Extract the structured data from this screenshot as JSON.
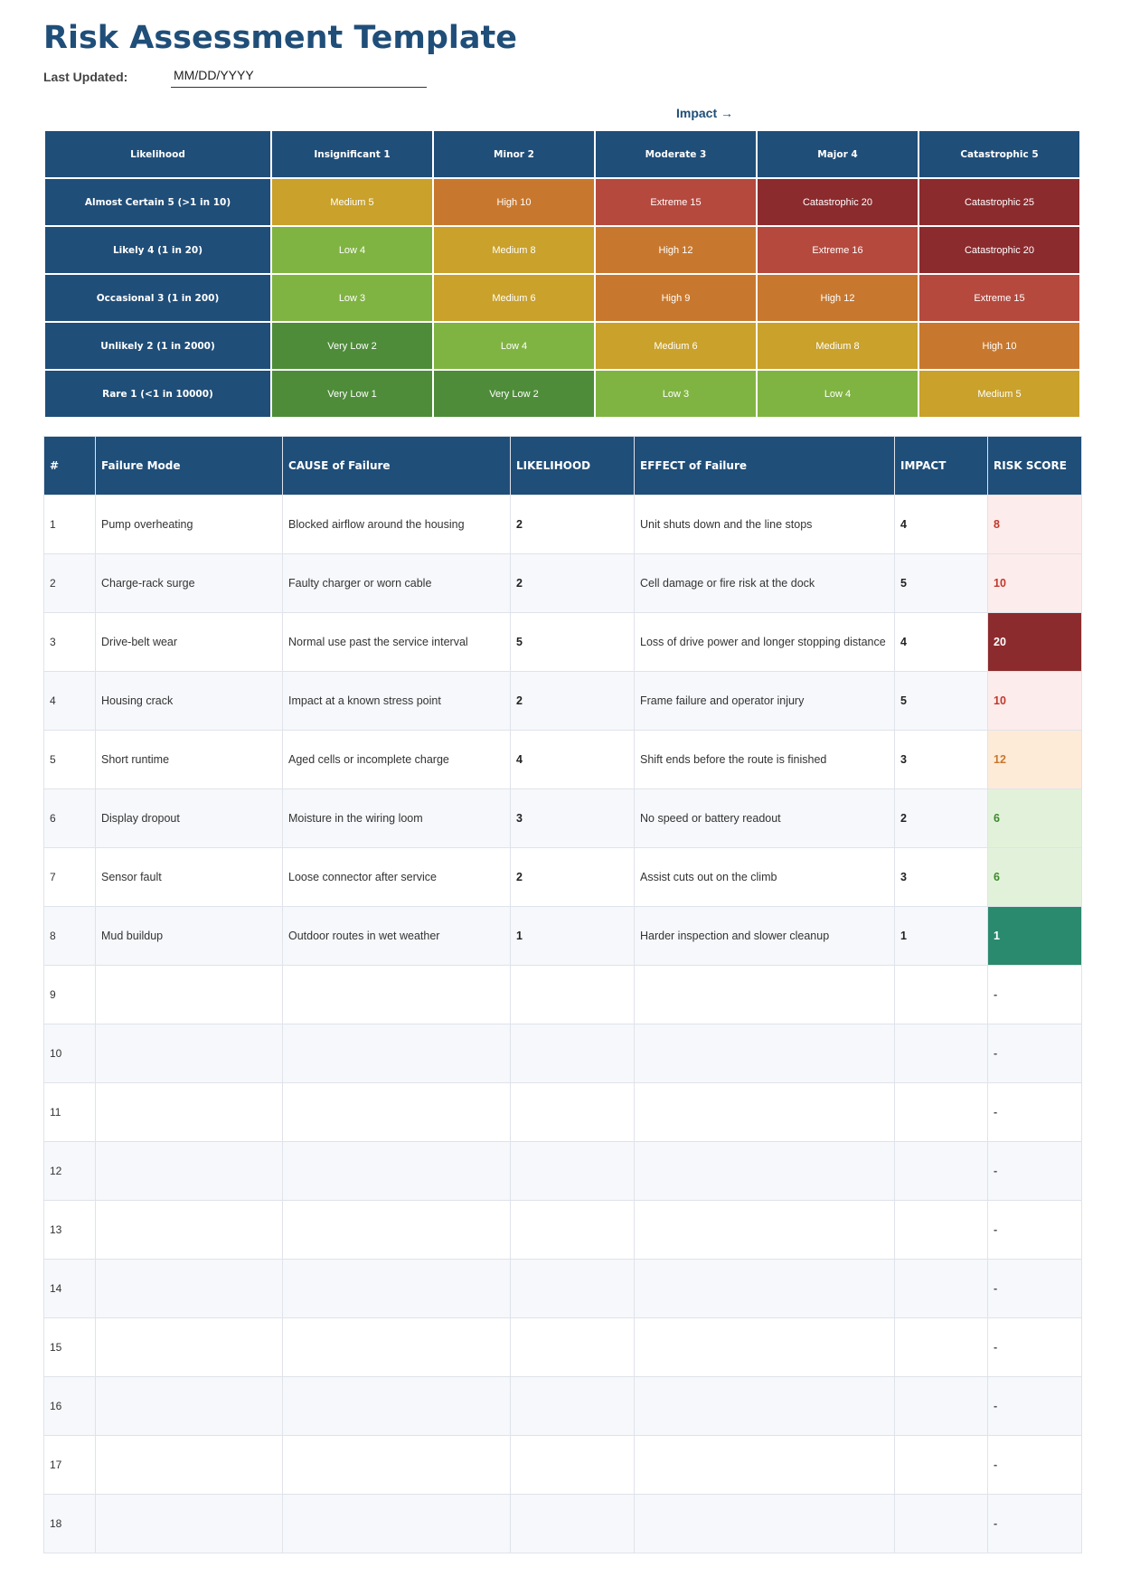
{
  "document": {
    "title": "Risk Assessment Template",
    "last_updated_label": "Last Updated:",
    "last_updated_value": "MM/DD/YYYY",
    "impact_label": "Impact  →"
  },
  "matrix": {
    "corner": "Likelihood",
    "impact_headers": [
      "Insignificant 1",
      "Minor 2",
      "Moderate 3",
      "Major 4",
      "Catastrophic 5"
    ],
    "rows": [
      {
        "label": "Almost Certain 5 (>1 in 10)",
        "cells": [
          "Medium 5",
          "High 10",
          "Extreme 15",
          "Catastrophic 20",
          "Catastrophic 25"
        ],
        "colors": [
          "#c9a12b",
          "#c8782e",
          "#b5493e",
          "#8b2b2e",
          "#8b2b2e"
        ]
      },
      {
        "label": "Likely 4 (1 in 20)",
        "cells": [
          "Low 4",
          "Medium 8",
          "High 12",
          "Extreme 16",
          "Catastrophic 20"
        ],
        "colors": [
          "#80b442",
          "#c9a12b",
          "#c8782e",
          "#b5493e",
          "#8b2b2e"
        ]
      },
      {
        "label": "Occasional 3 (1 in 200)",
        "cells": [
          "Low 3",
          "Medium 6",
          "High 9",
          "High 12",
          "Extreme 15"
        ],
        "colors": [
          "#80b442",
          "#c9a12b",
          "#c8782e",
          "#c8782e",
          "#b5493e"
        ]
      },
      {
        "label": "Unlikely 2 (1 in 2000)",
        "cells": [
          "Very Low 2",
          "Low 4",
          "Medium 6",
          "Medium 8",
          "High 10"
        ],
        "colors": [
          "#4e8c3a",
          "#80b442",
          "#c9a12b",
          "#c9a12b",
          "#c8782e"
        ]
      },
      {
        "label": "Rare 1 (<1 in 10000)",
        "cells": [
          "Very Low 1",
          "Very Low 2",
          "Low 3",
          "Low 4",
          "Medium 5"
        ],
        "colors": [
          "#4e8c3a",
          "#4e8c3a",
          "#80b442",
          "#80b442",
          "#c9a12b"
        ]
      }
    ]
  },
  "register": {
    "headers": [
      "#",
      "Failure Mode",
      "CAUSE of Failure",
      "LIKELIHOOD",
      "EFFECT of Failure",
      "IMPACT",
      "RISK SCORE"
    ],
    "rows": [
      {
        "n": "1",
        "mode": "Pump overheating",
        "cause": "Blocked airflow around the housing",
        "likelihood": "2",
        "effect": "Unit shuts down and the line stops",
        "impact": "4",
        "score": "8",
        "score_bg": "#fdecec",
        "score_fg": "#c0392b"
      },
      {
        "n": "2",
        "mode": "Charge-rack surge",
        "cause": "Faulty charger or worn cable",
        "likelihood": "2",
        "effect": "Cell damage or fire risk at the dock",
        "impact": "5",
        "score": "10",
        "score_bg": "#fdecec",
        "score_fg": "#c0392b"
      },
      {
        "n": "3",
        "mode": "Drive-belt wear",
        "cause": "Normal use past the service interval",
        "likelihood": "5",
        "effect": "Loss of drive power and longer stopping distance",
        "impact": "4",
        "score": "20",
        "score_bg": "#8b2b2e",
        "score_fg": "#ffffff"
      },
      {
        "n": "4",
        "mode": "Housing crack",
        "cause": "Impact at a known stress point",
        "likelihood": "2",
        "effect": "Frame failure and operator injury",
        "impact": "5",
        "score": "10",
        "score_bg": "#fdecec",
        "score_fg": "#c0392b"
      },
      {
        "n": "5",
        "mode": "Short runtime",
        "cause": "Aged cells or incomplete charge",
        "likelihood": "4",
        "effect": "Shift ends before the route is finished",
        "impact": "3",
        "score": "12",
        "score_bg": "#fdebd8",
        "score_fg": "#c8782e"
      },
      {
        "n": "6",
        "mode": "Display dropout",
        "cause": "Moisture in the wiring loom",
        "likelihood": "3",
        "effect": "No speed or battery readout",
        "impact": "2",
        "score": "6",
        "score_bg": "#e2f2da",
        "score_fg": "#3e8a2e"
      },
      {
        "n": "7",
        "mode": "Sensor fault",
        "cause": "Loose connector after service",
        "likelihood": "2",
        "effect": "Assist cuts out on the climb",
        "impact": "3",
        "score": "6",
        "score_bg": "#e2f2da",
        "score_fg": "#3e8a2e"
      },
      {
        "n": "8",
        "mode": "Mud buildup",
        "cause": "Outdoor routes in wet weather",
        "likelihood": "1",
        "effect": "Harder inspection and slower cleanup",
        "impact": "1",
        "score": "1",
        "score_bg": "#2a8a6e",
        "score_fg": "#ffffff"
      },
      {
        "n": "9",
        "mode": "",
        "cause": "",
        "likelihood": "",
        "effect": "",
        "impact": "",
        "score": "-"
      },
      {
        "n": "10",
        "mode": "",
        "cause": "",
        "likelihood": "",
        "effect": "",
        "impact": "",
        "score": "-"
      },
      {
        "n": "11",
        "mode": "",
        "cause": "",
        "likelihood": "",
        "effect": "",
        "impact": "",
        "score": "-"
      },
      {
        "n": "12",
        "mode": "",
        "cause": "",
        "likelihood": "",
        "effect": "",
        "impact": "",
        "score": "-"
      },
      {
        "n": "13",
        "mode": "",
        "cause": "",
        "likelihood": "",
        "effect": "",
        "impact": "",
        "score": "-"
      },
      {
        "n": "14",
        "mode": "",
        "cause": "",
        "likelihood": "",
        "effect": "",
        "impact": "",
        "score": "-"
      },
      {
        "n": "15",
        "mode": "",
        "cause": "",
        "likelihood": "",
        "effect": "",
        "impact": "",
        "score": "-"
      },
      {
        "n": "16",
        "mode": "",
        "cause": "",
        "likelihood": "",
        "effect": "",
        "impact": "",
        "score": "-"
      },
      {
        "n": "17",
        "mode": "",
        "cause": "",
        "likelihood": "",
        "effect": "",
        "impact": "",
        "score": "-"
      },
      {
        "n": "18",
        "mode": "",
        "cause": "",
        "likelihood": "",
        "effect": "",
        "impact": "",
        "score": "-"
      }
    ]
  }
}
